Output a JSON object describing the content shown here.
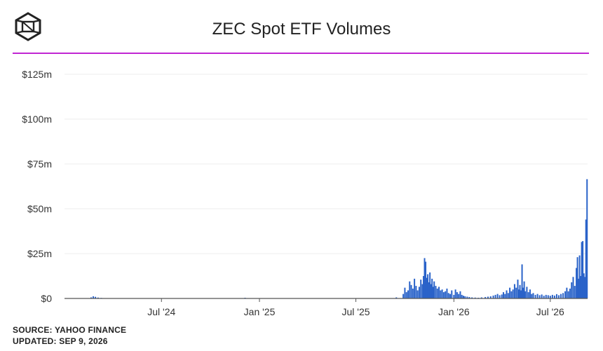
{
  "header": {
    "title": "ZEC Spot ETF Volumes",
    "logo_icon": "cube-logo-icon",
    "accent_color": "#c026d3"
  },
  "footer": {
    "source": "SOURCE: YAHOO FINANCE",
    "updated": "UPDATED: SEP 9, 2026"
  },
  "chart_data": {
    "type": "bar",
    "title": "ZEC Spot ETF Volumes",
    "xlabel": "",
    "ylabel": "",
    "bar_color": "#2a63c9",
    "ylim": [
      0,
      125
    ],
    "y_unit": "$ millions",
    "yticks": [
      0,
      25,
      50,
      75,
      100,
      125
    ],
    "ytick_labels": [
      "$0",
      "$25m",
      "$50m",
      "$75m",
      "$100m",
      "$125m"
    ],
    "xlim": [
      "2024-01-01",
      "2026-09-09"
    ],
    "xticks": [
      "2024-07-01",
      "2025-01-01",
      "2025-07-01",
      "2026-01-01",
      "2026-07-01"
    ],
    "xtick_labels": [
      "Jul '24",
      "Jan '25",
      "Jul '25",
      "Jan '26",
      "Jul '26"
    ],
    "grid": true,
    "legend": "none",
    "values": [
      {
        "x": "2024-02-20",
        "y": 0.6
      },
      {
        "x": "2024-02-24",
        "y": 1.2
      },
      {
        "x": "2024-02-28",
        "y": 0.9
      },
      {
        "x": "2024-03-04",
        "y": 0.5
      },
      {
        "x": "2024-03-10",
        "y": 0.3
      },
      {
        "x": "2024-12-05",
        "y": 0.4
      },
      {
        "x": "2025-09-15",
        "y": 0.6
      },
      {
        "x": "2025-09-28",
        "y": 2.5
      },
      {
        "x": "2025-10-01",
        "y": 6.0
      },
      {
        "x": "2025-10-04",
        "y": 3.5
      },
      {
        "x": "2025-10-07",
        "y": 4.5
      },
      {
        "x": "2025-10-10",
        "y": 9.5
      },
      {
        "x": "2025-10-13",
        "y": 7.5
      },
      {
        "x": "2025-10-16",
        "y": 5.5
      },
      {
        "x": "2025-10-19",
        "y": 11.0
      },
      {
        "x": "2025-10-22",
        "y": 7.0
      },
      {
        "x": "2025-10-25",
        "y": 4.5
      },
      {
        "x": "2025-10-28",
        "y": 6.5
      },
      {
        "x": "2025-10-31",
        "y": 10.5
      },
      {
        "x": "2025-11-03",
        "y": 8.0
      },
      {
        "x": "2025-11-05",
        "y": 12.5
      },
      {
        "x": "2025-11-07",
        "y": 22.5
      },
      {
        "x": "2025-11-09",
        "y": 20.5
      },
      {
        "x": "2025-11-11",
        "y": 11.5
      },
      {
        "x": "2025-11-13",
        "y": 13.5
      },
      {
        "x": "2025-11-15",
        "y": 9.0
      },
      {
        "x": "2025-11-17",
        "y": 14.5
      },
      {
        "x": "2025-11-19",
        "y": 8.0
      },
      {
        "x": "2025-11-21",
        "y": 11.0
      },
      {
        "x": "2025-11-23",
        "y": 6.5
      },
      {
        "x": "2025-11-25",
        "y": 9.5
      },
      {
        "x": "2025-11-28",
        "y": 7.0
      },
      {
        "x": "2025-12-01",
        "y": 5.5
      },
      {
        "x": "2025-12-04",
        "y": 6.5
      },
      {
        "x": "2025-12-07",
        "y": 4.5
      },
      {
        "x": "2025-12-10",
        "y": 5.0
      },
      {
        "x": "2025-12-13",
        "y": 3.5
      },
      {
        "x": "2025-12-16",
        "y": 4.0
      },
      {
        "x": "2025-12-19",
        "y": 5.5
      },
      {
        "x": "2025-12-22",
        "y": 3.0
      },
      {
        "x": "2025-12-25",
        "y": 2.5
      },
      {
        "x": "2025-12-28",
        "y": 4.5
      },
      {
        "x": "2026-01-01",
        "y": 2.0
      },
      {
        "x": "2026-01-04",
        "y": 5.0
      },
      {
        "x": "2026-01-07",
        "y": 3.5
      },
      {
        "x": "2026-01-10",
        "y": 2.5
      },
      {
        "x": "2026-01-13",
        "y": 4.0
      },
      {
        "x": "2026-01-16",
        "y": 2.0
      },
      {
        "x": "2026-01-19",
        "y": 1.5
      },
      {
        "x": "2026-01-22",
        "y": 1.2
      },
      {
        "x": "2026-01-26",
        "y": 1.0
      },
      {
        "x": "2026-01-30",
        "y": 0.8
      },
      {
        "x": "2026-02-04",
        "y": 0.6
      },
      {
        "x": "2026-02-10",
        "y": 0.5
      },
      {
        "x": "2026-02-16",
        "y": 0.4
      },
      {
        "x": "2026-02-22",
        "y": 0.6
      },
      {
        "x": "2026-03-01",
        "y": 0.8
      },
      {
        "x": "2026-03-06",
        "y": 1.0
      },
      {
        "x": "2026-03-11",
        "y": 1.2
      },
      {
        "x": "2026-03-16",
        "y": 1.6
      },
      {
        "x": "2026-03-20",
        "y": 2.0
      },
      {
        "x": "2026-03-24",
        "y": 2.5
      },
      {
        "x": "2026-03-28",
        "y": 1.8
      },
      {
        "x": "2026-04-01",
        "y": 2.2
      },
      {
        "x": "2026-04-04",
        "y": 3.5
      },
      {
        "x": "2026-04-07",
        "y": 2.5
      },
      {
        "x": "2026-04-10",
        "y": 4.5
      },
      {
        "x": "2026-04-13",
        "y": 3.0
      },
      {
        "x": "2026-04-16",
        "y": 6.0
      },
      {
        "x": "2026-04-19",
        "y": 4.0
      },
      {
        "x": "2026-04-22",
        "y": 5.0
      },
      {
        "x": "2026-04-25",
        "y": 8.0
      },
      {
        "x": "2026-04-28",
        "y": 6.0
      },
      {
        "x": "2026-05-01",
        "y": 10.5
      },
      {
        "x": "2026-05-03",
        "y": 5.0
      },
      {
        "x": "2026-05-05",
        "y": 7.5
      },
      {
        "x": "2026-05-07",
        "y": 4.5
      },
      {
        "x": "2026-05-09",
        "y": 19.0
      },
      {
        "x": "2026-05-11",
        "y": 6.0
      },
      {
        "x": "2026-05-13",
        "y": 9.5
      },
      {
        "x": "2026-05-15",
        "y": 4.0
      },
      {
        "x": "2026-05-18",
        "y": 6.5
      },
      {
        "x": "2026-05-21",
        "y": 3.5
      },
      {
        "x": "2026-05-24",
        "y": 5.0
      },
      {
        "x": "2026-05-27",
        "y": 2.5
      },
      {
        "x": "2026-05-30",
        "y": 3.0
      },
      {
        "x": "2026-06-03",
        "y": 2.0
      },
      {
        "x": "2026-06-07",
        "y": 2.5
      },
      {
        "x": "2026-06-11",
        "y": 1.8
      },
      {
        "x": "2026-06-15",
        "y": 2.2
      },
      {
        "x": "2026-06-19",
        "y": 1.5
      },
      {
        "x": "2026-06-23",
        "y": 2.0
      },
      {
        "x": "2026-06-27",
        "y": 1.8
      },
      {
        "x": "2026-07-01",
        "y": 1.5
      },
      {
        "x": "2026-07-05",
        "y": 2.0
      },
      {
        "x": "2026-07-09",
        "y": 1.6
      },
      {
        "x": "2026-07-13",
        "y": 2.4
      },
      {
        "x": "2026-07-17",
        "y": 1.8
      },
      {
        "x": "2026-07-21",
        "y": 2.5
      },
      {
        "x": "2026-07-25",
        "y": 3.0
      },
      {
        "x": "2026-07-29",
        "y": 4.0
      },
      {
        "x": "2026-08-01",
        "y": 6.0
      },
      {
        "x": "2026-08-04",
        "y": 4.0
      },
      {
        "x": "2026-08-07",
        "y": 5.5
      },
      {
        "x": "2026-08-10",
        "y": 9.0
      },
      {
        "x": "2026-08-13",
        "y": 12.0
      },
      {
        "x": "2026-08-16",
        "y": 7.0
      },
      {
        "x": "2026-08-19",
        "y": 17.0
      },
      {
        "x": "2026-08-21",
        "y": 23.0
      },
      {
        "x": "2026-08-23",
        "y": 11.0
      },
      {
        "x": "2026-08-25",
        "y": 24.0
      },
      {
        "x": "2026-08-27",
        "y": 12.5
      },
      {
        "x": "2026-08-29",
        "y": 31.5
      },
      {
        "x": "2026-08-31",
        "y": 32.0
      },
      {
        "x": "2026-09-02",
        "y": 14.0
      },
      {
        "x": "2026-09-04",
        "y": 12.0
      },
      {
        "x": "2026-09-06",
        "y": 44.0
      },
      {
        "x": "2026-09-08",
        "y": 66.5
      }
    ]
  }
}
